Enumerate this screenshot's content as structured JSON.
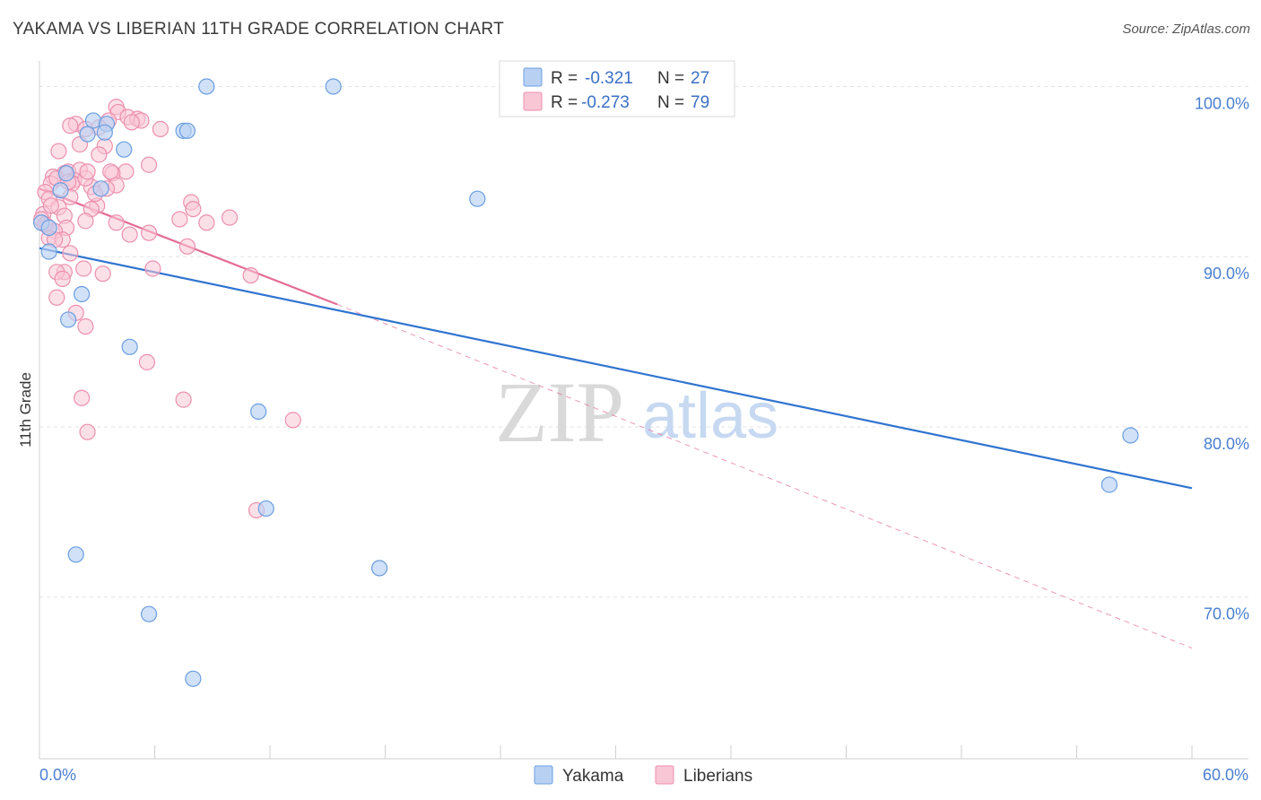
{
  "title": "YAKAMA VS LIBERIAN 11TH GRADE CORRELATION CHART",
  "source": "Source: ZipAtlas.com",
  "colors": {
    "yakama_fill": "#b8d1f3",
    "yakama_stroke": "#6b9ee0",
    "yakama_line": "#2f74d0",
    "liberian_fill": "#f9c6d6",
    "liberian_stroke": "#ec8fae",
    "liberian_line": "#e46b96",
    "grid": "#e3e3e3",
    "tick_text": "#4a7fd0"
  },
  "chart_data": {
    "type": "scatter",
    "title": "YAKAMA VS LIBERIAN 11TH GRADE CORRELATION CHART",
    "xlabel": "",
    "ylabel": "11th Grade",
    "xlim": [
      0,
      60
    ],
    "ylim": [
      60.5,
      101.5
    ],
    "x_tick_labels": [
      {
        "value": 0,
        "label": "0.0%"
      },
      {
        "value": 60,
        "label": "60.0%"
      }
    ],
    "y_tick_labels": [
      {
        "value": 100,
        "label": "100.0%"
      },
      {
        "value": 90,
        "label": "90.0%"
      },
      {
        "value": 80,
        "label": "80.0%"
      },
      {
        "value": 70,
        "label": "70.0%"
      }
    ],
    "grid": true,
    "legend_top": [
      {
        "series": "Yakama",
        "r_label": "R =",
        "r_value": "-0.321",
        "n_label": "N =",
        "n_value": "27"
      },
      {
        "series": "Liberians",
        "r_label": "R =",
        "r_value": "-0.273",
        "n_label": "N =",
        "n_value": "79"
      }
    ],
    "legend_bottom": [
      "Yakama",
      "Liberians"
    ],
    "watermark": {
      "zip": "ZIP",
      "atlas": "atlas"
    },
    "series": [
      {
        "name": "Yakama",
        "points": [
          [
            8.7,
            100.0
          ],
          [
            15.3,
            100.0
          ],
          [
            2.8,
            98.0
          ],
          [
            3.5,
            97.8
          ],
          [
            7.5,
            97.4
          ],
          [
            7.7,
            97.4
          ],
          [
            2.5,
            97.2
          ],
          [
            3.4,
            97.3
          ],
          [
            4.4,
            96.3
          ],
          [
            1.4,
            94.9
          ],
          [
            1.1,
            93.9
          ],
          [
            3.2,
            94.0
          ],
          [
            22.8,
            93.4
          ],
          [
            0.1,
            92.0
          ],
          [
            0.5,
            91.7
          ],
          [
            0.5,
            90.3
          ],
          [
            2.2,
            87.8
          ],
          [
            1.5,
            86.3
          ],
          [
            4.7,
            84.7
          ],
          [
            11.4,
            80.9
          ],
          [
            56.8,
            79.5
          ],
          [
            55.7,
            76.6
          ],
          [
            11.8,
            75.2
          ],
          [
            1.9,
            72.5
          ],
          [
            17.7,
            71.7
          ],
          [
            5.7,
            69.0
          ],
          [
            8.0,
            65.2
          ]
        ],
        "trendline": {
          "x0": 0.0,
          "y0": 90.5,
          "x1": 60.0,
          "y1": 76.4
        }
      },
      {
        "name": "Liberians",
        "points": [
          [
            4.0,
            98.8
          ],
          [
            4.1,
            98.5
          ],
          [
            4.6,
            98.2
          ],
          [
            5.1,
            98.1
          ],
          [
            5.3,
            98.0
          ],
          [
            3.6,
            98.0
          ],
          [
            1.9,
            97.8
          ],
          [
            1.6,
            97.7
          ],
          [
            2.4,
            97.5
          ],
          [
            4.8,
            97.9
          ],
          [
            6.3,
            97.5
          ],
          [
            3.1,
            97.6
          ],
          [
            2.1,
            96.6
          ],
          [
            3.4,
            96.5
          ],
          [
            1.0,
            96.2
          ],
          [
            3.1,
            96.0
          ],
          [
            5.7,
            95.4
          ],
          [
            4.5,
            95.0
          ],
          [
            3.8,
            94.9
          ],
          [
            1.3,
            94.9
          ],
          [
            1.5,
            95.0
          ],
          [
            2.1,
            95.1
          ],
          [
            0.7,
            94.7
          ],
          [
            1.8,
            94.5
          ],
          [
            0.6,
            94.3
          ],
          [
            1.7,
            94.3
          ],
          [
            2.7,
            94.1
          ],
          [
            4.0,
            94.2
          ],
          [
            3.5,
            94.0
          ],
          [
            0.3,
            93.8
          ],
          [
            1.6,
            93.5
          ],
          [
            0.5,
            93.4
          ],
          [
            3.0,
            93.0
          ],
          [
            7.9,
            93.2
          ],
          [
            8.0,
            92.8
          ],
          [
            1.0,
            92.9
          ],
          [
            2.7,
            92.8
          ],
          [
            0.2,
            92.5
          ],
          [
            1.3,
            92.4
          ],
          [
            9.9,
            92.3
          ],
          [
            7.3,
            92.2
          ],
          [
            2.4,
            92.1
          ],
          [
            4.0,
            92.0
          ],
          [
            8.7,
            92.0
          ],
          [
            0.1,
            92.2
          ],
          [
            0.4,
            91.8
          ],
          [
            1.4,
            91.7
          ],
          [
            0.8,
            91.5
          ],
          [
            0.3,
            91.9
          ],
          [
            5.7,
            91.4
          ],
          [
            4.7,
            91.3
          ],
          [
            0.5,
            91.1
          ],
          [
            1.2,
            91.0
          ],
          [
            7.7,
            90.6
          ],
          [
            1.6,
            90.2
          ],
          [
            2.3,
            89.3
          ],
          [
            1.3,
            89.1
          ],
          [
            5.9,
            89.3
          ],
          [
            11.0,
            88.9
          ],
          [
            3.3,
            89.0
          ],
          [
            0.9,
            89.1
          ],
          [
            1.2,
            88.7
          ],
          [
            0.9,
            87.6
          ],
          [
            1.9,
            86.7
          ],
          [
            2.4,
            85.9
          ],
          [
            5.6,
            83.8
          ],
          [
            2.2,
            81.7
          ],
          [
            7.5,
            81.6
          ],
          [
            13.2,
            80.4
          ],
          [
            2.5,
            79.7
          ],
          [
            11.3,
            75.1
          ],
          [
            0.9,
            94.6
          ],
          [
            1.5,
            94.4
          ],
          [
            2.4,
            94.6
          ],
          [
            0.6,
            93.0
          ],
          [
            3.7,
            95.0
          ],
          [
            2.9,
            93.7
          ],
          [
            0.8,
            91.0
          ],
          [
            2.5,
            95.0
          ]
        ],
        "trendline": {
          "x0": 0.0,
          "y0": 94.0,
          "x1": 15.5,
          "y1": 87.2
        },
        "trendline_extension": {
          "x0": 15.5,
          "y0": 87.2,
          "x1": 60.0,
          "y1": 67.0
        }
      }
    ]
  }
}
